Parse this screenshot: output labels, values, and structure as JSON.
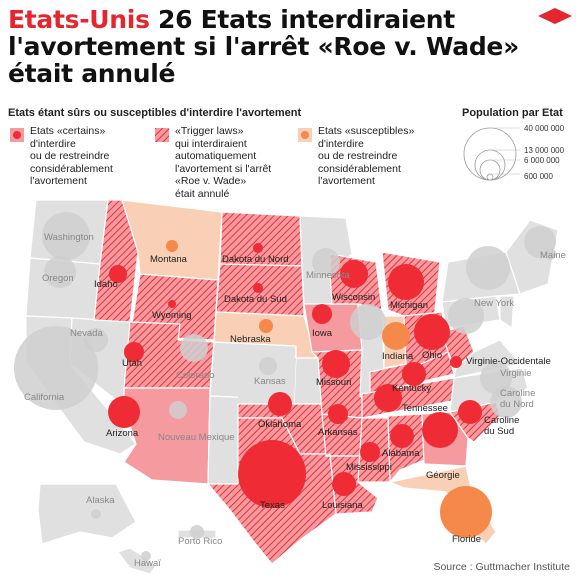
{
  "header": {
    "kicker": "Etats-Unis",
    "headline_line1": " 26 Etats interdiraient",
    "headline_line2": "l'avortement si l'arrêt «Roe v. Wade»",
    "headline_line3": "était annulé"
  },
  "legend": {
    "title": "Etats étant sûrs ou susceptibles d'interdire l'avortement",
    "items": [
      {
        "key": "certain",
        "color": "#e8303a",
        "lines": [
          "Etats «certains»",
          "d'interdire",
          "ou de restreindre",
          "considérablement",
          "l'avortement"
        ]
      },
      {
        "key": "trigger",
        "color": "#e8303a",
        "lines": [
          "«Trigger laws»",
          "qui interdiraient",
          "automatiquement",
          "l'avortement si l'arrêt",
          "«Roe v. Wade»",
          "était annulé"
        ]
      },
      {
        "key": "susceptible",
        "color": "#f5915a",
        "lines": [
          "Etats «susceptibles»",
          "d'interdire",
          "ou de restreindre",
          "considérablement",
          "l'avortement"
        ]
      }
    ]
  },
  "population_legend": {
    "title": "Population par Etat",
    "values": [
      "40 000 000",
      "13 000 000",
      "6 000 000",
      "600 000"
    ]
  },
  "colors": {
    "accent": "#e3262f",
    "certain_fill": "#f59a9e",
    "susceptible_fill": "#f9d0b5",
    "other_fill": "#e0e0e0",
    "certain_bubble": "#ef2b35",
    "susceptible_bubble": "#f5894a",
    "other_bubble": "#cfcfcf"
  },
  "map": {
    "states": [
      {
        "label": "Washington",
        "category": "other",
        "bubble": "other"
      },
      {
        "label": "Oregon",
        "category": "other",
        "bubble": "other"
      },
      {
        "label": "California",
        "category": "other",
        "bubble": "other"
      },
      {
        "label": "Nevada",
        "category": "other",
        "bubble": "other"
      },
      {
        "label": "Idaho",
        "category": "certain",
        "bubble": "certain"
      },
      {
        "label": "Montana",
        "category": "susceptible",
        "bubble": "susceptible"
      },
      {
        "label": "Wyoming",
        "category": "certain",
        "bubble": "certain"
      },
      {
        "label": "Utah",
        "category": "certain",
        "bubble": "certain"
      },
      {
        "label": "Arizona",
        "category": "certain",
        "bubble": "certain"
      },
      {
        "label": "Colorado",
        "category": "other",
        "bubble": "other"
      },
      {
        "label": "Nouveau Mexique",
        "category": "other",
        "bubble": "other"
      },
      {
        "label": "Dakota du Nord",
        "category": "certain",
        "bubble": "certain"
      },
      {
        "label": "Dakota du Sud",
        "category": "certain",
        "bubble": "certain"
      },
      {
        "label": "Nebraska",
        "category": "susceptible",
        "bubble": "susceptible"
      },
      {
        "label": "Kansas",
        "category": "other",
        "bubble": "other"
      },
      {
        "label": "Oklahoma",
        "category": "certain",
        "bubble": "certain"
      },
      {
        "label": "Texas",
        "category": "certain",
        "bubble": "certain"
      },
      {
        "label": "Minnesota",
        "category": "other",
        "bubble": "other"
      },
      {
        "label": "Iowa",
        "category": "certain",
        "bubble": "certain"
      },
      {
        "label": "Missouri",
        "category": "certain",
        "bubble": "certain"
      },
      {
        "label": "Arkansas",
        "category": "certain",
        "bubble": "certain"
      },
      {
        "label": "Louisiana",
        "category": "certain",
        "bubble": "certain"
      },
      {
        "label": "Wisconsin",
        "category": "certain",
        "bubble": "certain"
      },
      {
        "label": "Michigan",
        "category": "certain",
        "bubble": "certain"
      },
      {
        "label": "Indiana",
        "category": "susceptible",
        "bubble": "susceptible"
      },
      {
        "label": "Ohio",
        "category": "certain",
        "bubble": "certain"
      },
      {
        "label": "Kentucky",
        "category": "certain",
        "bubble": "certain"
      },
      {
        "label": "Tennessee",
        "category": "certain",
        "bubble": "certain"
      },
      {
        "label": "Mississippi",
        "category": "certain",
        "bubble": "certain"
      },
      {
        "label": "Alabama",
        "category": "certain",
        "bubble": "certain"
      },
      {
        "label": "Géorgie",
        "category": "certain",
        "bubble": "certain"
      },
      {
        "label": "Floride",
        "category": "susceptible",
        "bubble": "susceptible"
      },
      {
        "label": "Caroline du Sud",
        "category": "certain",
        "bubble": "certain"
      },
      {
        "label": "Caroline du Nord",
        "category": "other",
        "bubble": "other"
      },
      {
        "label": "Virginie-Occidentale",
        "category": "certain",
        "bubble": "certain"
      },
      {
        "label": "Virginie",
        "category": "other",
        "bubble": "other"
      },
      {
        "label": "New York",
        "category": "other",
        "bubble": "other"
      },
      {
        "label": "Maine",
        "category": "other",
        "bubble": "other"
      },
      {
        "label": "Alaska",
        "category": "other",
        "bubble": "other"
      },
      {
        "label": "Hawaï",
        "category": "other",
        "bubble": "other"
      },
      {
        "label": "Porto Rico",
        "category": "other",
        "bubble": "other"
      }
    ]
  },
  "source": "Source : Guttmacher Institute"
}
